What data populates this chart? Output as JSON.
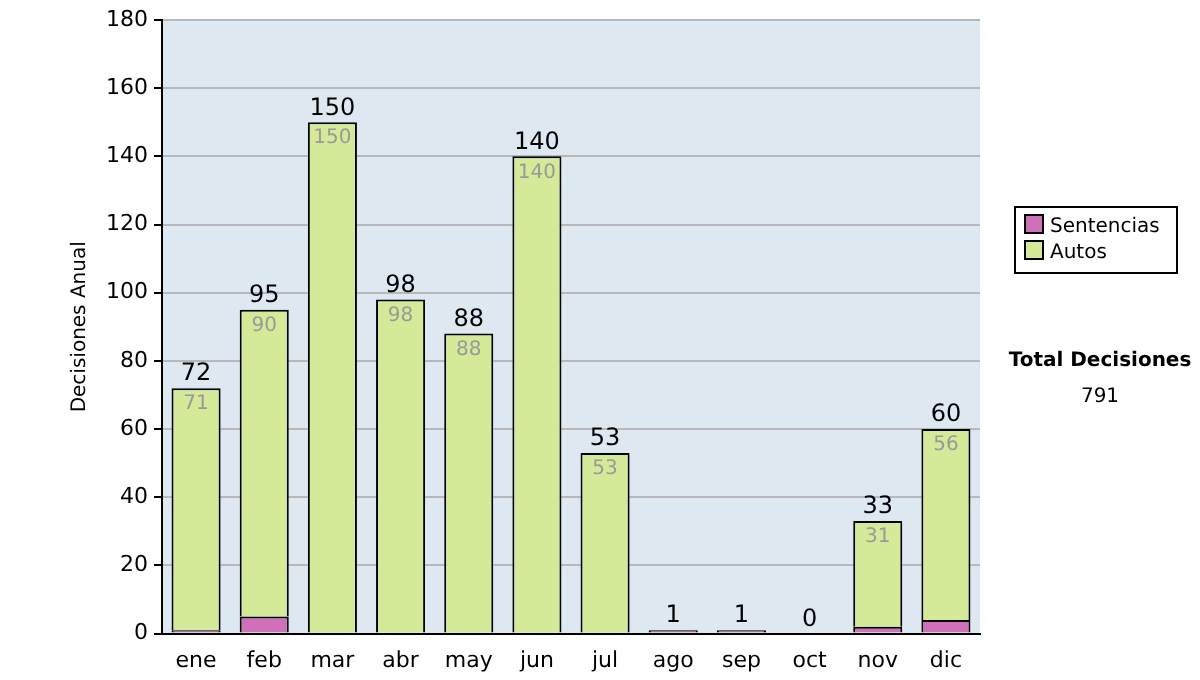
{
  "chart_data": {
    "type": "bar",
    "stacked": true,
    "ylabel": "Decisiones Anual",
    "categories": [
      "ene",
      "feb",
      "mar",
      "abr",
      "may",
      "jun",
      "jul",
      "ago",
      "sep",
      "oct",
      "nov",
      "dic"
    ],
    "series": [
      {
        "name": "Sentencias",
        "color": "#d070b8",
        "values": [
          1,
          5,
          0,
          0,
          0,
          0,
          0,
          1,
          1,
          0,
          2,
          4
        ]
      },
      {
        "name": "Autos",
        "color": "#d4ea98",
        "values": [
          71,
          90,
          150,
          98,
          88,
          140,
          53,
          0,
          0,
          0,
          31,
          56
        ],
        "value_labels": [
          "71",
          "90",
          "150",
          "98",
          "88",
          "140",
          "53",
          null,
          null,
          null,
          "31",
          "56"
        ]
      }
    ],
    "totals": [
      "72",
      "95",
      "150",
      "98",
      "88",
      "140",
      "53",
      "1",
      "1",
      "0",
      "33",
      "60"
    ],
    "ylim": [
      0,
      180
    ],
    "yticks": [
      0,
      20,
      40,
      60,
      80,
      100,
      120,
      140,
      160,
      180
    ],
    "grid": "y",
    "legend": "right",
    "annotations": [
      "Total Decisiones",
      "791"
    ]
  }
}
